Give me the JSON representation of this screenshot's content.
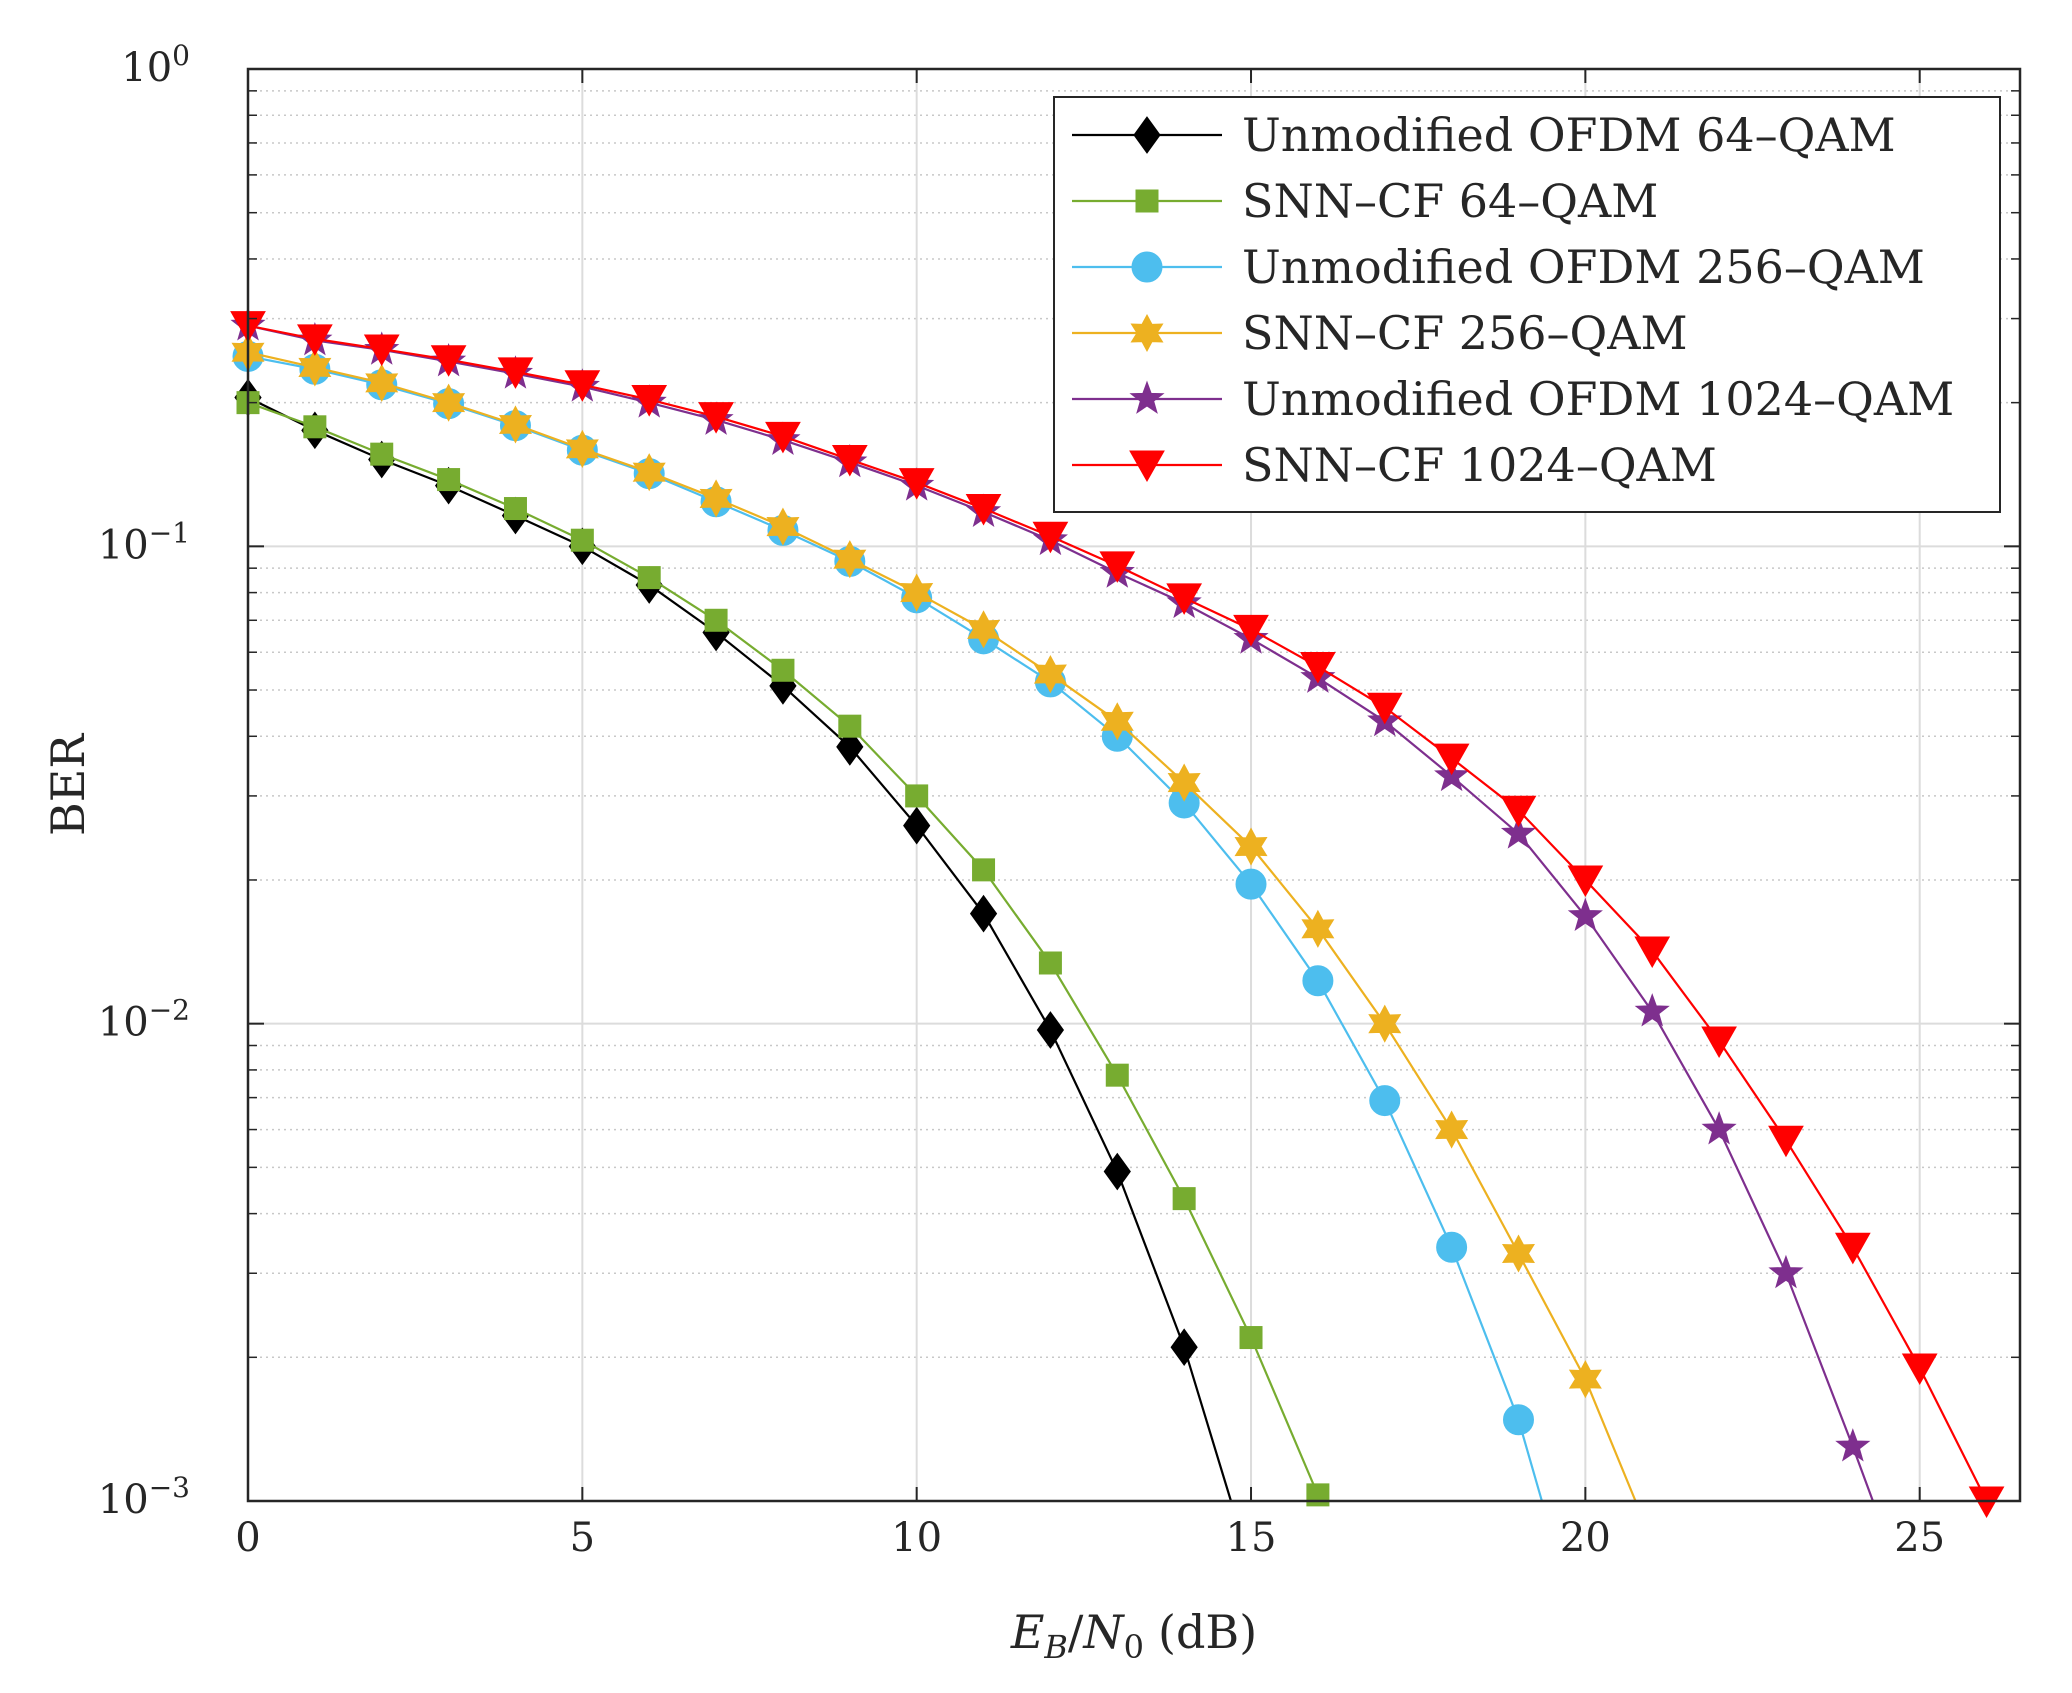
{
  "chart_data": {
    "type": "line",
    "title": "",
    "xlabel": {
      "base": "E",
      "sub1": "B",
      "slash": "/",
      "base2": "N",
      "sub2": "0",
      "unit": "(dB)"
    },
    "ylabel": "BER",
    "xlim": [
      0,
      26.5
    ],
    "ylim": [
      0.001,
      1
    ],
    "yscale": "log",
    "grid": true,
    "legend_position": "top-right",
    "x_ticks": [
      "0",
      "5",
      "10",
      "15",
      "20",
      "25"
    ],
    "y_ticks": [
      {
        "value": 1,
        "base": "10",
        "exp": "0"
      },
      {
        "value": 0.1,
        "base": "10",
        "exp": "−1"
      },
      {
        "value": 0.01,
        "base": "10",
        "exp": "−2"
      },
      {
        "value": 0.001,
        "base": "10",
        "exp": "−3"
      }
    ],
    "series": [
      {
        "name": "Unmodified OFDM 64–QAM",
        "color": "#000000",
        "marker": "diamond",
        "x": [
          0,
          1,
          2,
          3,
          4,
          5,
          6,
          7,
          8,
          9,
          10,
          11,
          12,
          13,
          14,
          14.7
        ],
        "y": [
          0.205,
          0.175,
          0.152,
          0.134,
          0.116,
          0.1,
          0.083,
          0.066,
          0.051,
          0.038,
          0.026,
          0.017,
          0.0097,
          0.0049,
          0.0021,
          0.001
        ],
        "marker_count": 15
      },
      {
        "name": "SNN–CF 64–QAM",
        "color": "#77ac30",
        "marker": "square",
        "x": [
          0,
          1,
          2,
          3,
          4,
          5,
          6,
          7,
          8,
          9,
          10,
          11,
          12,
          13,
          14,
          15,
          16
        ],
        "y": [
          0.2,
          0.178,
          0.156,
          0.138,
          0.12,
          0.103,
          0.086,
          0.07,
          0.055,
          0.042,
          0.03,
          0.021,
          0.0134,
          0.0078,
          0.0043,
          0.0022,
          0.00103
        ],
        "marker_count": 17
      },
      {
        "name": "Unmodified OFDM 256–QAM",
        "color": "#4dbeee",
        "marker": "circle",
        "x": [
          0,
          1,
          2,
          3,
          4,
          5,
          6,
          7,
          8,
          9,
          10,
          11,
          12,
          13,
          14,
          15,
          16,
          17,
          18,
          19,
          19.35
        ],
        "y": [
          0.25,
          0.235,
          0.218,
          0.199,
          0.179,
          0.159,
          0.142,
          0.124,
          0.108,
          0.093,
          0.078,
          0.064,
          0.052,
          0.04,
          0.029,
          0.0196,
          0.0123,
          0.0069,
          0.0034,
          0.00148,
          0.001
        ],
        "marker_count": 20
      },
      {
        "name": "SNN–CF 256–QAM",
        "color": "#edb120",
        "marker": "hexagram",
        "x": [
          0,
          1,
          2,
          3,
          4,
          5,
          6,
          7,
          8,
          9,
          10,
          11,
          12,
          13,
          14,
          15,
          16,
          17,
          18,
          19,
          20,
          20.75
        ],
        "y": [
          0.255,
          0.237,
          0.22,
          0.2,
          0.18,
          0.16,
          0.143,
          0.126,
          0.11,
          0.094,
          0.08,
          0.067,
          0.054,
          0.043,
          0.032,
          0.0235,
          0.0158,
          0.01,
          0.006,
          0.0033,
          0.0018,
          0.001
        ],
        "marker_count": 21
      },
      {
        "name": "Unmodified OFDM 1024–QAM",
        "color": "#7e2f8e",
        "marker": "pentagram",
        "x": [
          0,
          1,
          2,
          3,
          4,
          5,
          6,
          7,
          8,
          9,
          10,
          11,
          12,
          13,
          14,
          15,
          16,
          17,
          18,
          19,
          20,
          21,
          22,
          23,
          24,
          24.3
        ],
        "y": [
          0.29,
          0.27,
          0.258,
          0.244,
          0.23,
          0.216,
          0.2,
          0.184,
          0.167,
          0.15,
          0.134,
          0.118,
          0.103,
          0.088,
          0.076,
          0.064,
          0.053,
          0.043,
          0.033,
          0.025,
          0.0168,
          0.0106,
          0.006,
          0.003,
          0.0013,
          0.001
        ],
        "marker_count": 25
      },
      {
        "name": "SNN–CF 1024–QAM",
        "color": "#ff0000",
        "marker": "triangle-down",
        "x": [
          0,
          1,
          2,
          3,
          4,
          5,
          6,
          7,
          8,
          9,
          10,
          11,
          12,
          13,
          14,
          15,
          16,
          17,
          18,
          19,
          20,
          21,
          22,
          23,
          24,
          25,
          26
        ],
        "y": [
          0.29,
          0.272,
          0.259,
          0.246,
          0.232,
          0.218,
          0.203,
          0.187,
          0.17,
          0.152,
          0.136,
          0.12,
          0.105,
          0.091,
          0.078,
          0.067,
          0.056,
          0.046,
          0.036,
          0.028,
          0.02,
          0.0142,
          0.0092,
          0.0057,
          0.0034,
          0.0019,
          0.001
        ],
        "marker_count": 27
      }
    ]
  }
}
